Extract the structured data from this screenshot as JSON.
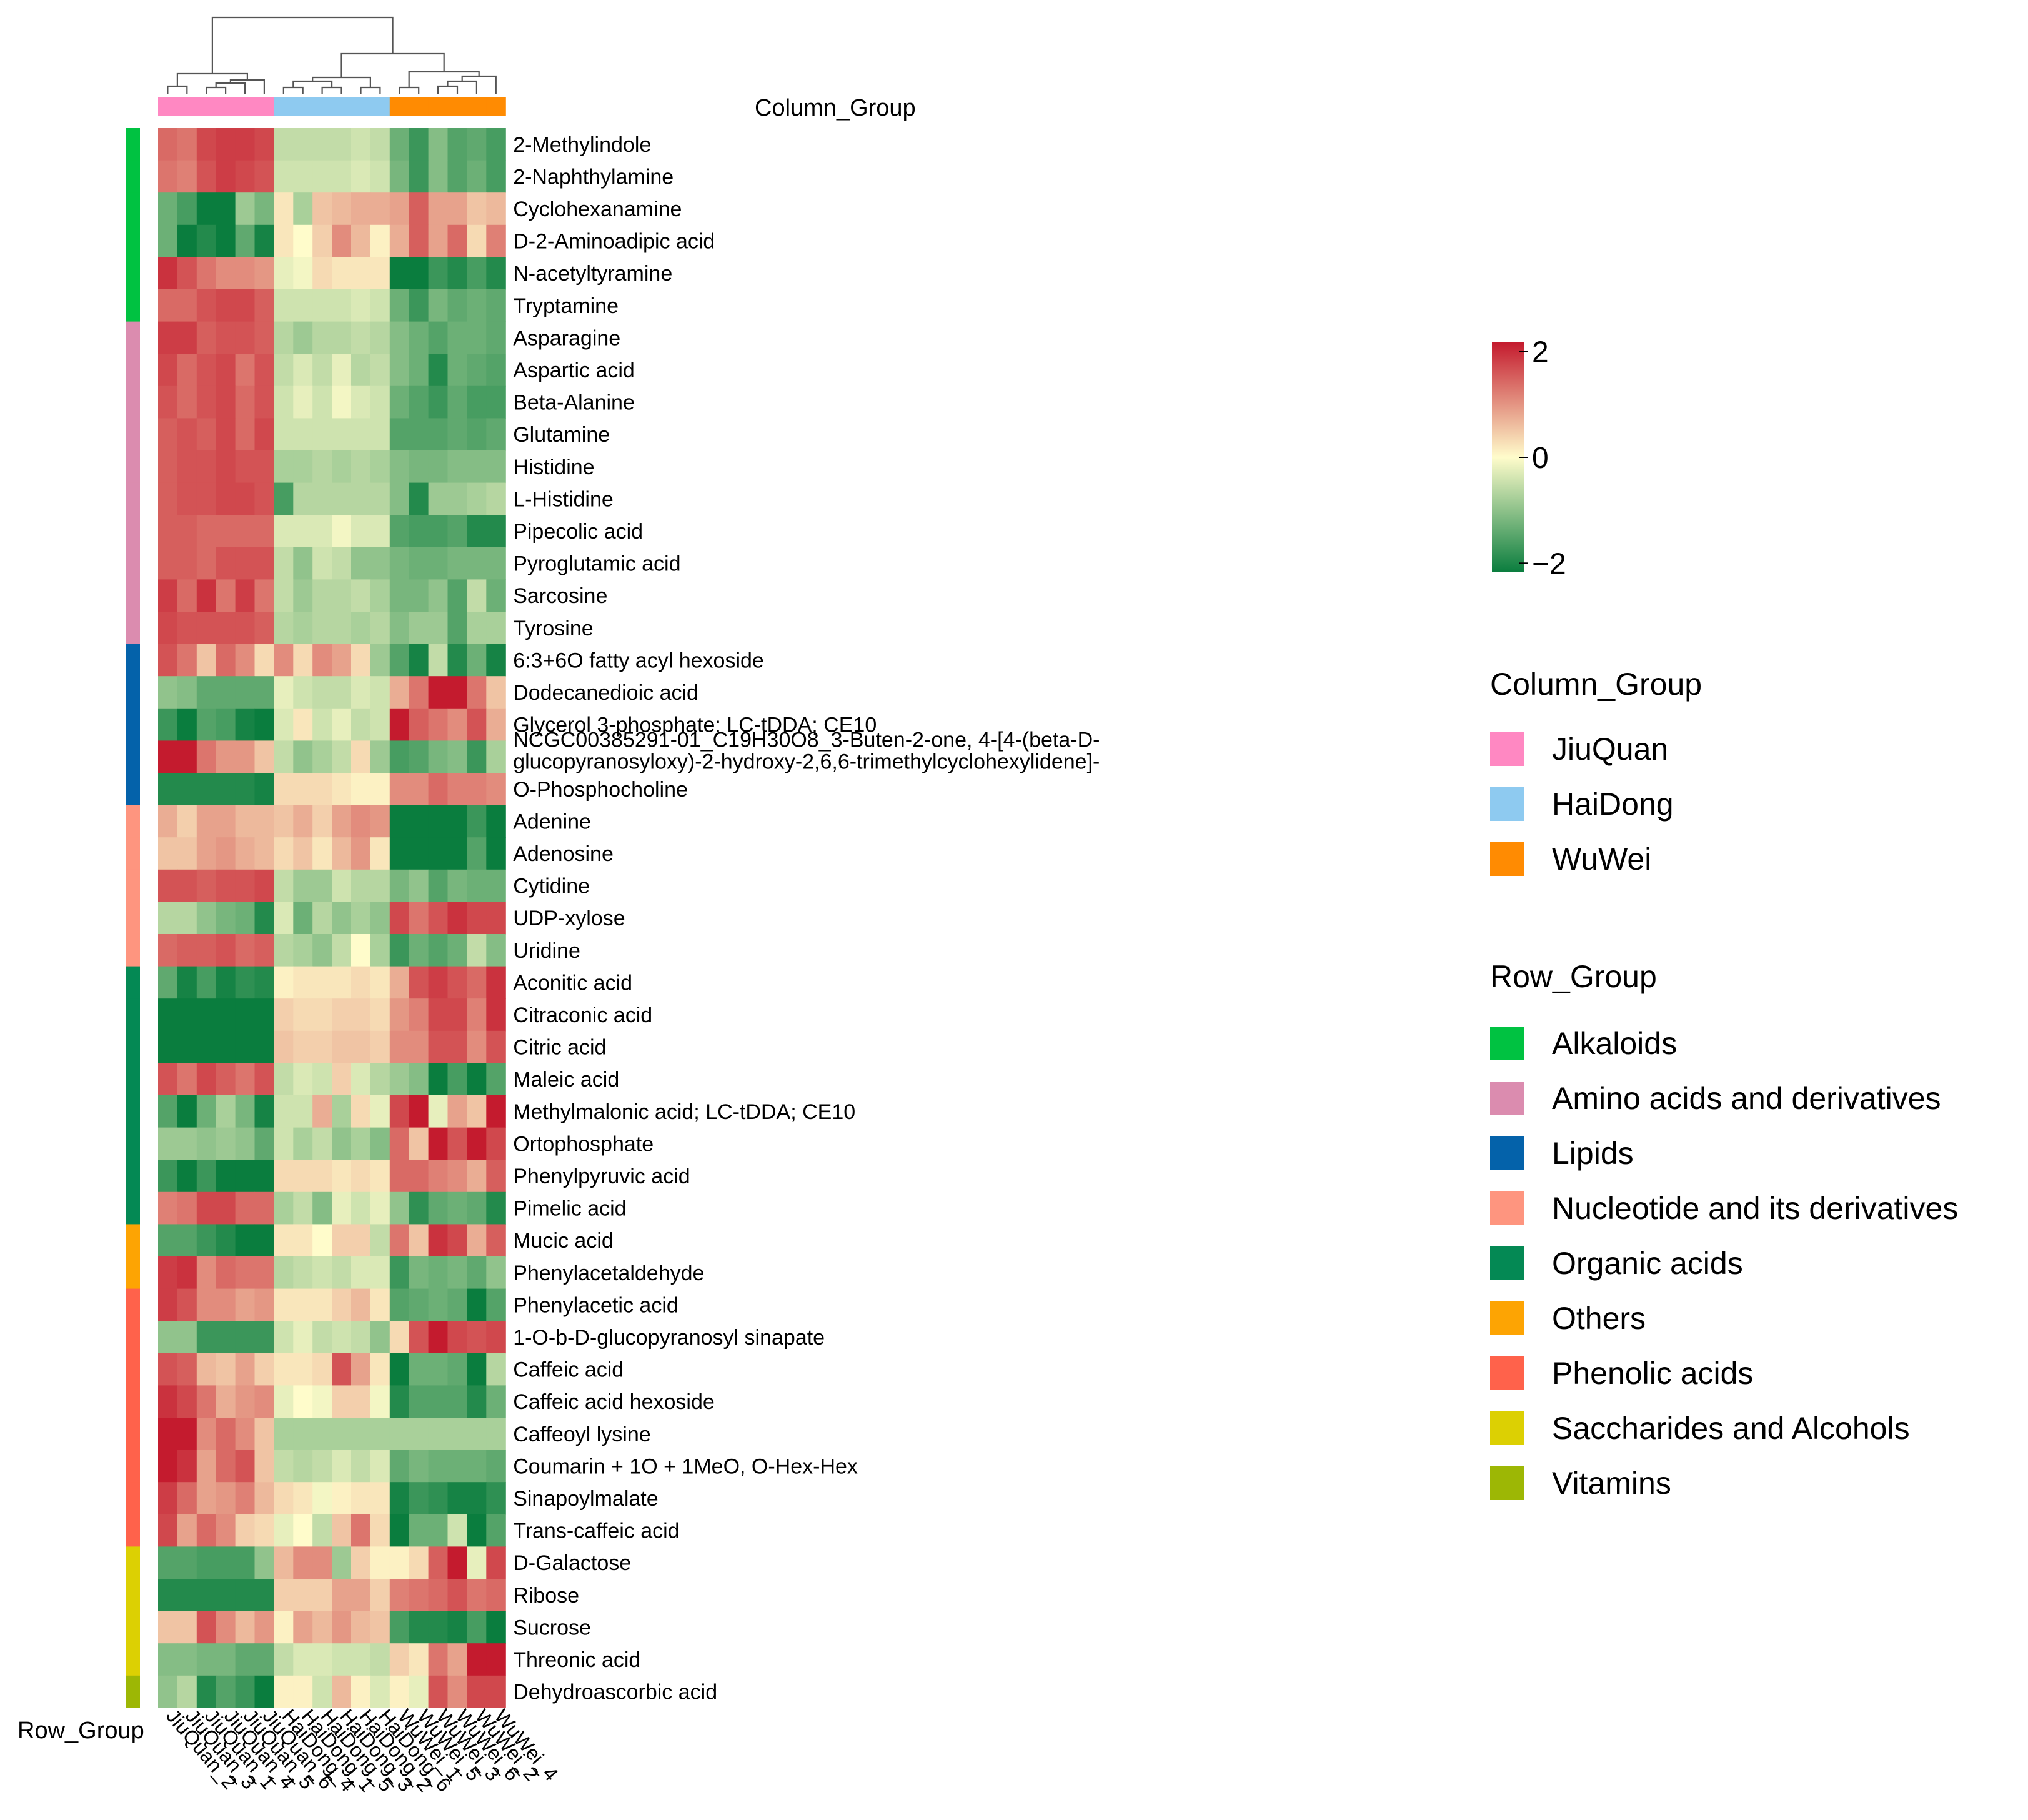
{
  "chart_data": {
    "type": "heatmap",
    "title": "",
    "column_group_label": "Column_Group",
    "row_group_label": "Row_Group",
    "columns": [
      "JiuQuan_2",
      "JiuQuan_3",
      "JiuQuan_1",
      "JiuQuan_4",
      "JiuQuan_5",
      "JiuQuan_6",
      "HaiDong_4",
      "HaiDong_1",
      "HaiDong_5",
      "HaiDong_3",
      "HaiDong_2",
      "HaiDong_6",
      "WuWei_1",
      "WuWei_5",
      "WuWei_3",
      "WuWei_6",
      "WuWei_2",
      "WuWei_4"
    ],
    "column_groups": [
      "JiuQuan",
      "JiuQuan",
      "JiuQuan",
      "JiuQuan",
      "JiuQuan",
      "JiuQuan",
      "HaiDong",
      "HaiDong",
      "HaiDong",
      "HaiDong",
      "HaiDong",
      "HaiDong",
      "WuWei",
      "WuWei",
      "WuWei",
      "WuWei",
      "WuWei",
      "WuWei"
    ],
    "rows": [
      "2-Methylindole",
      "2-Naphthylamine",
      "Cyclohexanamine",
      "D-2-Aminoadipic acid",
      "N-acetyltyramine",
      "Tryptamine",
      "Asparagine",
      "Aspartic acid",
      "Beta-Alanine",
      "Glutamine",
      "Histidine",
      "L-Histidine",
      "Pipecolic acid",
      "Pyroglutamic acid",
      "Sarcosine",
      "Tyrosine",
      "6:3+6O fatty acyl hexoside",
      "Dodecanedioic acid",
      "Glycerol 3-phosphate; LC-tDDA; CE10",
      "NCGC00385291-01_C19H30O8_3-Buten-2-one, 4-[4-(beta-D-glucopyranosyloxy)-2-hydroxy-2,6,6-trimethylcyclohexylidene]-",
      "O-Phosphocholine",
      "Adenine",
      "Adenosine",
      "Cytidine",
      "UDP-xylose",
      "Uridine",
      "Aconitic acid",
      "Citraconic acid",
      "Citric acid",
      "Maleic acid",
      "Methylmalonic acid; LC-tDDA; CE10",
      "Ortophosphate",
      "Phenylpyruvic acid",
      "Pimelic acid",
      "Mucic acid",
      "Phenylacetaldehyde",
      "Phenylacetic acid",
      "1-O-b-D-glucopyranosyl sinapate",
      "Caffeic acid",
      "Caffeic acid hexoside",
      "Caffeoyl lysine",
      "Coumarin + 1O + 1MeO, O-Hex-Hex",
      "Sinapoylmalate",
      "Trans-caffeic acid",
      "D-Galactose",
      "Ribose",
      "Sucrose",
      "Threonic acid",
      "Dehydroascorbic acid"
    ],
    "row_groups": [
      "Alkaloids",
      "Alkaloids",
      "Alkaloids",
      "Alkaloids",
      "Alkaloids",
      "Alkaloids",
      "Amino acids and derivatives",
      "Amino acids and derivatives",
      "Amino acids and derivatives",
      "Amino acids and derivatives",
      "Amino acids and derivatives",
      "Amino acids and derivatives",
      "Amino acids and derivatives",
      "Amino acids and derivatives",
      "Amino acids and derivatives",
      "Amino acids and derivatives",
      "Lipids",
      "Lipids",
      "Lipids",
      "Lipids",
      "Lipids",
      "Nucleotide and its derivatives",
      "Nucleotide and its derivatives",
      "Nucleotide and its derivatives",
      "Nucleotide and its derivatives",
      "Nucleotide and its derivatives",
      "Organic acids",
      "Organic acids",
      "Organic acids",
      "Organic acids",
      "Organic acids",
      "Organic acids",
      "Organic acids",
      "Organic acids",
      "Others",
      "Others",
      "Phenolic acids",
      "Phenolic acids",
      "Phenolic acids",
      "Phenolic acids",
      "Phenolic acids",
      "Phenolic acids",
      "Phenolic acids",
      "Phenolic acids",
      "Saccharides and Alcohols",
      "Saccharides and Alcohols",
      "Saccharides and Alcohols",
      "Saccharides and Alcohols",
      "Vitamins"
    ],
    "values": [
      [
        1.3,
        1.2,
        1.6,
        1.7,
        1.7,
        1.6,
        -0.5,
        -0.5,
        -0.5,
        -0.5,
        -0.4,
        -0.5,
        -1.2,
        -1.6,
        -1.0,
        -1.4,
        -1.3,
        -1.5
      ],
      [
        1.2,
        1.1,
        1.5,
        1.7,
        1.6,
        1.5,
        -0.4,
        -0.4,
        -0.4,
        -0.4,
        -0.3,
        -0.4,
        -1.1,
        -1.6,
        -1.0,
        -1.4,
        -1.2,
        -1.5
      ],
      [
        -1.2,
        -1.5,
        -2.2,
        -2.4,
        -0.8,
        -1.1,
        0.2,
        -0.7,
        0.5,
        0.6,
        0.7,
        0.7,
        0.8,
        1.4,
        0.8,
        0.8,
        0.5,
        0.6
      ],
      [
        -1.2,
        -2.0,
        -1.8,
        -2.0,
        -1.3,
        -1.9,
        0.2,
        0.0,
        0.4,
        1.0,
        0.6,
        0.1,
        0.7,
        1.4,
        0.8,
        1.3,
        0.3,
        1.1
      ],
      [
        1.8,
        1.5,
        1.2,
        1.0,
        1.0,
        0.9,
        -0.2,
        -0.1,
        0.3,
        0.2,
        0.2,
        0.2,
        -2.0,
        -2.0,
        -1.6,
        -1.8,
        -1.5,
        -1.8
      ],
      [
        1.3,
        1.3,
        1.5,
        1.6,
        1.6,
        1.4,
        -0.4,
        -0.4,
        -0.4,
        -0.4,
        -0.3,
        -0.4,
        -1.2,
        -1.6,
        -1.1,
        -1.3,
        -1.2,
        -1.3
      ],
      [
        1.7,
        1.7,
        1.4,
        1.5,
        1.5,
        1.4,
        -0.6,
        -0.8,
        -0.6,
        -0.6,
        -0.5,
        -0.6,
        -1.0,
        -1.2,
        -1.4,
        -1.2,
        -1.2,
        -1.3
      ],
      [
        1.6,
        1.3,
        1.5,
        1.6,
        1.2,
        1.5,
        -0.5,
        -0.3,
        -0.5,
        -0.2,
        -0.6,
        -0.5,
        -1.0,
        -1.2,
        -1.8,
        -1.2,
        -1.3,
        -1.4
      ],
      [
        1.5,
        1.3,
        1.5,
        1.6,
        1.3,
        1.5,
        -0.4,
        -0.2,
        -0.4,
        -0.1,
        -0.3,
        -0.4,
        -1.2,
        -1.4,
        -1.6,
        -1.3,
        -1.5,
        -1.5
      ],
      [
        1.4,
        1.5,
        1.4,
        1.6,
        1.3,
        1.6,
        -0.4,
        -0.4,
        -0.4,
        -0.4,
        -0.4,
        -0.4,
        -1.4,
        -1.4,
        -1.4,
        -1.3,
        -1.4,
        -1.3
      ],
      [
        1.4,
        1.5,
        1.5,
        1.6,
        1.5,
        1.5,
        -0.7,
        -0.7,
        -0.6,
        -0.7,
        -0.6,
        -0.7,
        -1.0,
        -1.1,
        -1.1,
        -1.0,
        -1.0,
        -1.0
      ],
      [
        1.4,
        1.5,
        1.5,
        1.6,
        1.6,
        1.5,
        -1.5,
        -0.6,
        -0.6,
        -0.6,
        -0.6,
        -0.6,
        -1.0,
        -1.8,
        -0.8,
        -0.8,
        -0.7,
        -0.6
      ],
      [
        1.4,
        1.4,
        1.3,
        1.3,
        1.3,
        1.3,
        -0.3,
        -0.3,
        -0.3,
        -0.1,
        -0.3,
        -0.3,
        -1.4,
        -1.5,
        -1.5,
        -1.4,
        -1.8,
        -1.8
      ],
      [
        1.4,
        1.4,
        1.3,
        1.5,
        1.5,
        1.5,
        -0.5,
        -0.9,
        -0.4,
        -0.5,
        -0.9,
        -0.9,
        -1.1,
        -1.2,
        -1.2,
        -1.1,
        -1.1,
        -1.1
      ],
      [
        1.7,
        1.3,
        1.8,
        1.2,
        1.7,
        1.2,
        -0.5,
        -0.8,
        -0.6,
        -0.6,
        -0.5,
        -0.7,
        -1.1,
        -1.1,
        -0.9,
        -1.4,
        -0.5,
        -1.2
      ],
      [
        1.6,
        1.5,
        1.5,
        1.5,
        1.5,
        1.4,
        -0.6,
        -0.7,
        -0.6,
        -0.6,
        -0.7,
        -0.6,
        -1.0,
        -0.8,
        -0.8,
        -1.4,
        -0.7,
        -0.7
      ],
      [
        1.5,
        1.2,
        0.5,
        1.3,
        1.0,
        0.3,
        1.0,
        0.3,
        1.0,
        0.8,
        0.3,
        -0.8,
        -1.4,
        -1.9,
        -0.5,
        -1.8,
        -1.2,
        -1.9
      ],
      [
        -0.9,
        -1.0,
        -1.3,
        -1.3,
        -1.3,
        -1.3,
        -0.2,
        -0.4,
        -0.5,
        -0.5,
        -0.3,
        -0.4,
        0.7,
        1.2,
        2.6,
        2.0,
        1.2,
        0.5
      ],
      [
        -1.6,
        -2.0,
        -1.4,
        -1.5,
        -1.9,
        -2.0,
        -0.3,
        0.2,
        -0.4,
        -0.2,
        -0.5,
        -0.4,
        2.2,
        1.4,
        1.2,
        1.0,
        1.5,
        0.7
      ],
      [
        2.1,
        2.4,
        1.2,
        0.9,
        0.9,
        0.5,
        -0.5,
        -0.9,
        -0.7,
        -0.5,
        0.3,
        -0.8,
        -1.5,
        -1.4,
        -1.1,
        -1.0,
        -1.6,
        -0.7
      ],
      [
        -1.8,
        -1.8,
        -1.8,
        -1.8,
        -1.8,
        -1.9,
        0.3,
        0.3,
        0.3,
        0.2,
        0.1,
        0.1,
        1.0,
        1.0,
        1.3,
        1.1,
        1.1,
        1.0
      ],
      [
        0.7,
        0.4,
        0.8,
        0.8,
        0.6,
        0.6,
        0.5,
        0.7,
        0.4,
        0.8,
        1.0,
        0.9,
        -2.1,
        -2.0,
        -2.1,
        -2.1,
        -1.6,
        -2.2
      ],
      [
        0.5,
        0.5,
        0.8,
        0.9,
        0.7,
        0.6,
        0.3,
        0.5,
        0.2,
        0.6,
        0.9,
        0.2,
        -2.1,
        -2.0,
        -2.0,
        -2.1,
        -1.4,
        -2.2
      ],
      [
        1.5,
        1.5,
        1.4,
        1.5,
        1.5,
        1.6,
        -0.5,
        -0.8,
        -0.8,
        -0.4,
        -0.6,
        -0.6,
        -1.1,
        -0.9,
        -1.4,
        -1.1,
        -1.2,
        -1.2
      ],
      [
        -0.6,
        -0.6,
        -0.9,
        -1.1,
        -1.2,
        -1.8,
        -0.3,
        -1.2,
        -0.6,
        -0.9,
        -0.7,
        -0.9,
        1.6,
        1.2,
        1.5,
        1.8,
        1.6,
        1.6
      ],
      [
        1.3,
        1.4,
        1.4,
        1.5,
        1.3,
        1.4,
        -0.6,
        -0.7,
        -0.9,
        -0.5,
        0.0,
        -0.7,
        -1.6,
        -1.2,
        -1.4,
        -1.2,
        -0.5,
        -1.0
      ],
      [
        -1.3,
        -1.9,
        -1.5,
        -1.9,
        -1.7,
        -1.8,
        0.1,
        0.2,
        0.2,
        0.2,
        0.3,
        0.2,
        0.7,
        1.5,
        1.7,
        1.5,
        1.3,
        1.8
      ],
      [
        -2.0,
        -2.0,
        -2.0,
        -2.0,
        -2.0,
        -2.0,
        0.4,
        0.3,
        0.3,
        0.4,
        0.4,
        0.3,
        0.9,
        1.1,
        1.6,
        1.6,
        1.1,
        1.8
      ],
      [
        -2.0,
        -2.0,
        -2.0,
        -2.0,
        -2.0,
        -2.0,
        0.5,
        0.4,
        0.4,
        0.5,
        0.5,
        0.4,
        1.0,
        1.0,
        1.5,
        1.5,
        1.0,
        1.5
      ],
      [
        1.5,
        1.2,
        1.6,
        1.4,
        1.2,
        1.5,
        -0.5,
        -0.3,
        -0.4,
        0.4,
        -0.3,
        -0.6,
        -0.8,
        -1.0,
        -2.0,
        -1.5,
        -2.0,
        -1.4
      ],
      [
        -1.4,
        -2.0,
        -1.2,
        -0.7,
        -1.1,
        -1.9,
        -0.4,
        -0.4,
        0.7,
        -0.7,
        0.3,
        -0.2,
        1.6,
        2.2,
        -0.2,
        0.8,
        0.5,
        2.2
      ],
      [
        -0.8,
        -0.8,
        -0.9,
        -0.8,
        -0.9,
        -1.3,
        -0.4,
        -0.7,
        -0.5,
        -0.9,
        -0.7,
        -1.0,
        1.3,
        0.5,
        2.0,
        1.5,
        2.0,
        1.6
      ],
      [
        -1.6,
        -2.0,
        -1.6,
        -2.0,
        -2.0,
        -2.0,
        0.3,
        0.3,
        0.3,
        0.2,
        0.3,
        0.2,
        1.3,
        1.3,
        1.1,
        1.0,
        0.7,
        1.4
      ],
      [
        1.1,
        1.2,
        1.6,
        1.6,
        1.3,
        1.3,
        -0.7,
        -0.5,
        -1.0,
        -0.2,
        -0.4,
        -0.2,
        -0.9,
        -1.7,
        -1.3,
        -1.2,
        -1.3,
        -1.8
      ],
      [
        -1.4,
        -1.4,
        -1.6,
        -1.8,
        -2.0,
        -2.0,
        0.2,
        0.2,
        0.0,
        0.4,
        0.4,
        -0.5,
        1.2,
        0.5,
        1.8,
        1.6,
        0.7,
        1.4
      ],
      [
        1.7,
        1.8,
        1.0,
        1.3,
        1.2,
        1.2,
        -0.6,
        -0.5,
        -0.4,
        -0.5,
        -0.3,
        -0.3,
        -1.6,
        -1.1,
        -1.2,
        -1.1,
        -1.3,
        -0.9
      ],
      [
        1.7,
        1.5,
        1.0,
        1.0,
        0.8,
        0.9,
        0.2,
        0.2,
        0.2,
        0.4,
        0.6,
        0.2,
        -1.4,
        -1.3,
        -1.2,
        -1.3,
        -2.0,
        -1.4
      ],
      [
        -0.9,
        -0.9,
        -1.6,
        -1.6,
        -1.6,
        -1.6,
        -0.4,
        -0.2,
        -0.5,
        -0.4,
        -0.5,
        -0.9,
        0.3,
        1.5,
        2.2,
        1.6,
        1.5,
        1.6
      ],
      [
        1.5,
        1.4,
        0.6,
        0.5,
        0.8,
        0.4,
        0.2,
        0.2,
        0.3,
        1.5,
        0.8,
        0.2,
        -2.3,
        -1.2,
        -1.2,
        -1.3,
        -2.2,
        -0.6
      ],
      [
        1.8,
        1.6,
        1.2,
        0.7,
        0.9,
        1.0,
        -0.2,
        0.0,
        -0.1,
        0.4,
        0.4,
        -0.1,
        -1.8,
        -1.4,
        -1.4,
        -1.4,
        -1.8,
        -1.2
      ],
      [
        2.4,
        2.2,
        1.0,
        1.3,
        1.0,
        0.5,
        -0.7,
        -0.7,
        -0.7,
        -0.7,
        -0.7,
        -0.7,
        -0.7,
        -0.7,
        -0.7,
        -0.7,
        -0.7,
        -0.7
      ],
      [
        2.3,
        1.8,
        0.8,
        1.3,
        1.5,
        0.5,
        -0.5,
        -0.6,
        -0.5,
        -0.3,
        -0.5,
        -0.3,
        -1.3,
        -1.1,
        -1.2,
        -1.2,
        -1.2,
        -1.3
      ],
      [
        1.7,
        1.3,
        0.8,
        0.9,
        1.1,
        0.6,
        0.3,
        0.2,
        -0.1,
        0.1,
        0.2,
        0.2,
        -1.9,
        -1.6,
        -1.7,
        -1.9,
        -1.9,
        -1.7
      ],
      [
        1.6,
        0.8,
        1.3,
        1.0,
        0.4,
        0.3,
        -0.2,
        0.0,
        -0.5,
        0.5,
        1.2,
        0.3,
        -2.3,
        -1.2,
        -1.2,
        -0.4,
        -2.4,
        -1.4
      ],
      [
        -1.4,
        -1.4,
        -1.5,
        -1.5,
        -1.5,
        -0.9,
        0.6,
        1.0,
        1.0,
        -0.8,
        0.4,
        0.1,
        0.1,
        0.3,
        1.4,
        2.8,
        -0.2,
        1.6
      ],
      [
        -1.8,
        -1.8,
        -1.8,
        -1.8,
        -1.8,
        -1.8,
        0.4,
        0.4,
        0.4,
        0.8,
        0.8,
        0.4,
        1.1,
        1.2,
        1.3,
        1.5,
        1.2,
        1.3
      ],
      [
        0.5,
        0.5,
        1.5,
        1.0,
        0.6,
        0.9,
        0.1,
        0.8,
        0.6,
        0.9,
        0.6,
        0.5,
        -1.5,
        -1.8,
        -1.8,
        -1.9,
        -1.5,
        -2.2
      ],
      [
        -1.0,
        -1.0,
        -1.1,
        -1.1,
        -1.3,
        -1.3,
        -0.5,
        -0.3,
        -0.3,
        -0.4,
        -0.4,
        -0.5,
        0.4,
        0.2,
        1.2,
        0.8,
        2.4,
        2.8
      ],
      [
        -0.9,
        -0.6,
        -1.8,
        -1.4,
        -1.6,
        -2.1,
        0.1,
        0.1,
        -0.4,
        0.6,
        0.1,
        -0.3,
        0.1,
        -0.2,
        1.5,
        1.0,
        1.6,
        1.6
      ]
    ],
    "color_scale": {
      "min": -2,
      "mid": 0,
      "max": 2,
      "ticks": [
        "2",
        "0",
        "−2"
      ],
      "colors": [
        "#0a7d3e",
        "#fffccb",
        "#c41b2e"
      ]
    },
    "legend": {
      "column_group_title": "Column_Group",
      "column_group_items": [
        {
          "label": "JiuQuan",
          "color": "#ff88c2"
        },
        {
          "label": "HaiDong",
          "color": "#8ecaf0"
        },
        {
          "label": "WuWei",
          "color": "#ff8b02"
        }
      ],
      "row_group_title": "Row_Group",
      "row_group_items": [
        {
          "label": "Alkaloids",
          "color": "#00c241"
        },
        {
          "label": "Amino acids and derivatives",
          "color": "#db8caf"
        },
        {
          "label": "Lipids",
          "color": "#0462aa"
        },
        {
          "label": "Nucleotide and its derivatives",
          "color": "#fe957f"
        },
        {
          "label": "Organic acids",
          "color": "#048954"
        },
        {
          "label": "Others",
          "color": "#fda403"
        },
        {
          "label": "Phenolic acids",
          "color": "#ff624b"
        },
        {
          "label": "Saccharides and Alcohols",
          "color": "#dcd003"
        },
        {
          "label": "Vitamins",
          "color": "#9db705"
        }
      ]
    }
  }
}
